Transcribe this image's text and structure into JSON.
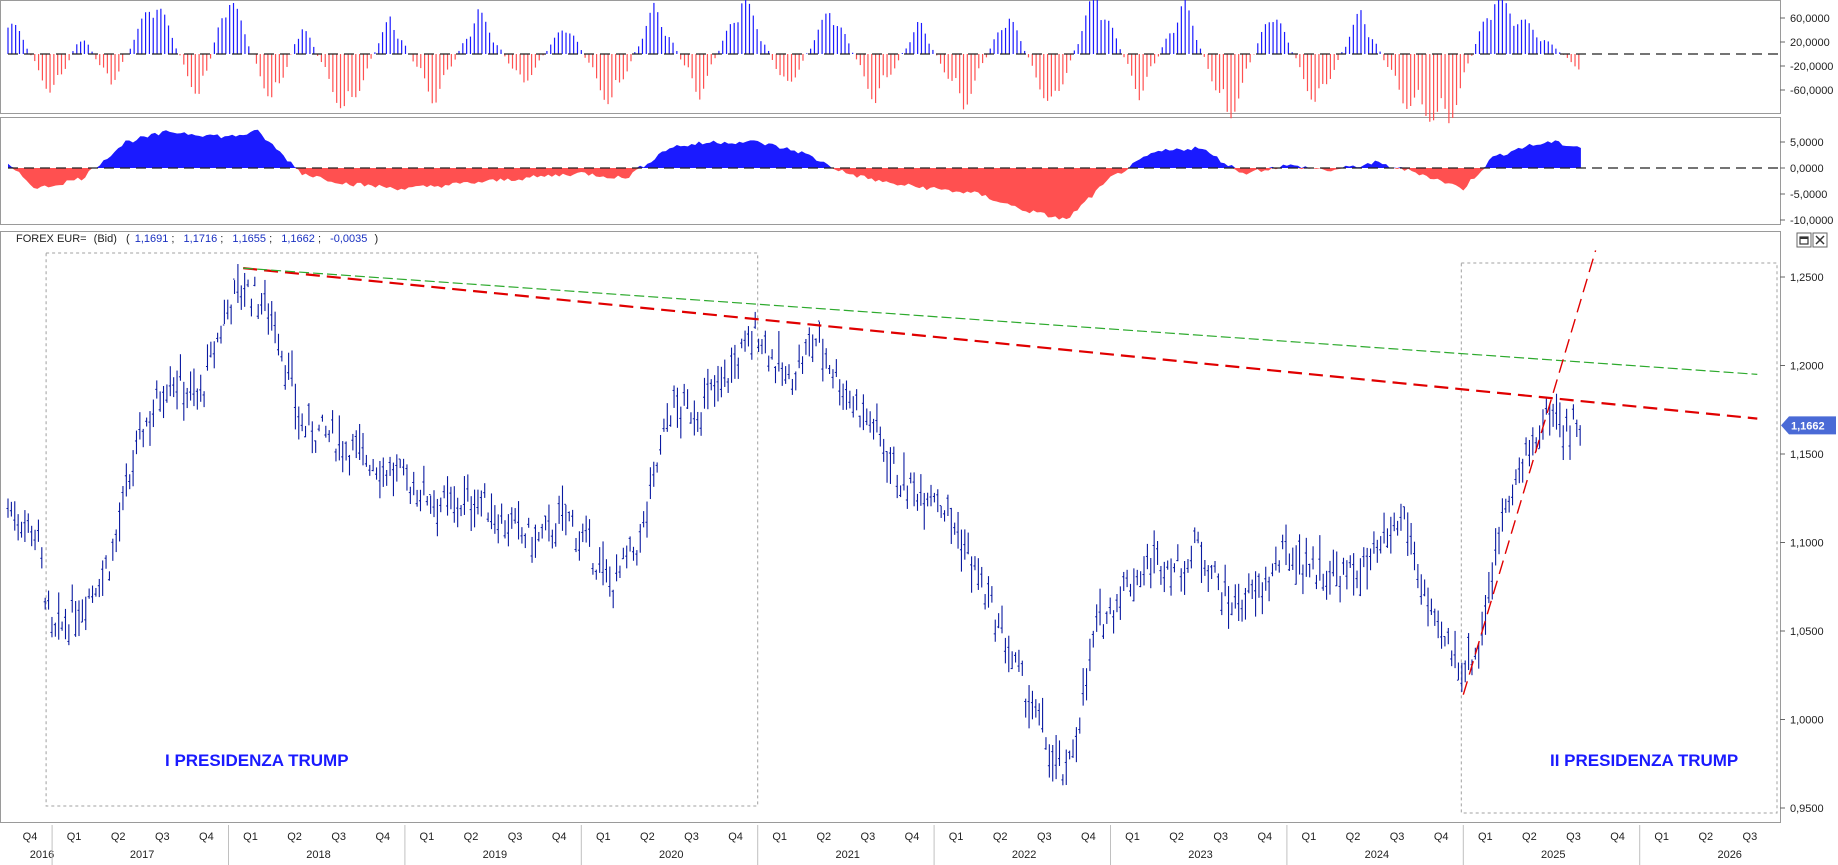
{
  "chart_data": {
    "type": "line",
    "instrument": {
      "name": "FOREX EUR=",
      "price_type": "(Bid)",
      "open": "1,1691",
      "high": "1,1716",
      "low": "1,1655",
      "close": "1,1662",
      "change": "-0,0035",
      "last_price_label": "1,1662"
    },
    "y_ticks": [
      "1,2500",
      "1,2000",
      "1,1500",
      "1,1000",
      "1,0500",
      "1,0000",
      "0,9500"
    ],
    "ylim": [
      0.94,
      1.27
    ],
    "oscillator1_ticks": [
      "60,0000",
      "20,0000",
      "-20,0000",
      "-60,0000"
    ],
    "oscillator2_ticks": [
      "5,0000",
      "0,0000",
      "-5,0000",
      "-10,0000"
    ],
    "quarter_ticks": [
      "Q4",
      "Q1",
      "Q2",
      "Q3",
      "Q4",
      "Q1",
      "Q2",
      "Q3",
      "Q4",
      "Q1",
      "Q2",
      "Q3",
      "Q4",
      "Q1",
      "Q2",
      "Q3",
      "Q4",
      "Q1",
      "Q2",
      "Q3",
      "Q4",
      "Q1",
      "Q2",
      "Q3",
      "Q4",
      "Q1",
      "Q2",
      "Q3",
      "Q4",
      "Q1",
      "Q2",
      "Q3",
      "Q4",
      "Q1",
      "Q2",
      "Q3",
      "Q4",
      "Q1",
      "Q2",
      "Q3"
    ],
    "year_ticks": [
      "2016",
      "2017",
      "2018",
      "2019",
      "2020",
      "2021",
      "2022",
      "2023",
      "2024",
      "2025",
      "2026"
    ],
    "x_range": [
      "2016-10",
      "2026-09"
    ],
    "series": [
      {
        "x": [
          "2016-10",
          "2016-12",
          "2017-01",
          "2017-03",
          "2017-05",
          "2017-07",
          "2017-09",
          "2017-11",
          "2018-01",
          "2018-02",
          "2018-04",
          "2018-06",
          "2018-08",
          "2018-10",
          "2018-12",
          "2019-02",
          "2019-04",
          "2019-06",
          "2019-08",
          "2019-10",
          "2019-12",
          "2020-02",
          "2020-03",
          "2020-05",
          "2020-07",
          "2020-09",
          "2020-11",
          "2021-01",
          "2021-03",
          "2021-05",
          "2021-07",
          "2021-09",
          "2021-11",
          "2022-01",
          "2022-03",
          "2022-05",
          "2022-07",
          "2022-09",
          "2022-10",
          "2022-12",
          "2023-02",
          "2023-04",
          "2023-06",
          "2023-07",
          "2023-09",
          "2023-11",
          "2024-01",
          "2024-03",
          "2024-05",
          "2024-07",
          "2024-09",
          "2024-11",
          "2025-01",
          "2025-02",
          "2025-04",
          "2025-05",
          "2025-06",
          "2025-07",
          "2025-08",
          "2025-09"
        ],
        "values": [
          1.12,
          1.105,
          1.045,
          1.065,
          1.09,
          1.16,
          1.195,
          1.18,
          1.235,
          1.245,
          1.23,
          1.165,
          1.16,
          1.15,
          1.14,
          1.13,
          1.12,
          1.125,
          1.11,
          1.1,
          1.115,
          1.09,
          1.075,
          1.1,
          1.175,
          1.175,
          1.195,
          1.22,
          1.19,
          1.215,
          1.185,
          1.165,
          1.13,
          1.13,
          1.1,
          1.06,
          1.02,
          0.98,
          0.965,
          1.05,
          1.075,
          1.09,
          1.085,
          1.1,
          1.065,
          1.07,
          1.095,
          1.085,
          1.08,
          1.09,
          1.115,
          1.05,
          1.03,
          1.04,
          1.13,
          1.14,
          1.16,
          1.175,
          1.165,
          1.166
        ]
      }
    ],
    "oscillator1": {
      "x": [
        "2016-10",
        "2017-01",
        "2017-03",
        "2017-05",
        "2017-08",
        "2017-11",
        "2018-01",
        "2018-04",
        "2018-06",
        "2018-09",
        "2018-12",
        "2019-03",
        "2019-06",
        "2019-09",
        "2019-12",
        "2020-03",
        "2020-06",
        "2020-09",
        "2020-12",
        "2021-03",
        "2021-06",
        "2021-09",
        "2021-12",
        "2022-03",
        "2022-06",
        "2022-09",
        "2022-12",
        "2023-03",
        "2023-06",
        "2023-09",
        "2023-12",
        "2024-03",
        "2024-06",
        "2024-09",
        "2024-12",
        "2025-03",
        "2025-06",
        "2025-09"
      ],
      "values": [
        40,
        -40,
        20,
        -30,
        55,
        -45,
        60,
        -50,
        30,
        -60,
        35,
        -45,
        40,
        -30,
        30,
        -50,
        45,
        -40,
        55,
        -35,
        45,
        -45,
        30,
        -50,
        40,
        -55,
        60,
        -40,
        50,
        -65,
        45,
        -50,
        40,
        -45,
        -65,
        55,
        20,
        -15
      ]
    },
    "oscillator2": {
      "x": [
        "2016-10",
        "2016-12",
        "2017-03",
        "2017-06",
        "2017-09",
        "2018-01",
        "2018-03",
        "2018-06",
        "2018-09",
        "2019-01",
        "2019-05",
        "2019-09",
        "2020-01",
        "2020-04",
        "2020-07",
        "2020-10",
        "2021-01",
        "2021-04",
        "2021-07",
        "2021-10",
        "2022-01",
        "2022-04",
        "2022-07",
        "2022-10",
        "2023-01",
        "2023-04",
        "2023-07",
        "2023-10",
        "2024-01",
        "2024-04",
        "2024-07",
        "2024-10",
        "2025-01",
        "2025-03",
        "2025-05",
        "2025-07",
        "2025-09"
      ],
      "values": [
        0.5,
        -4,
        -2,
        5,
        7,
        6,
        7,
        -1,
        -3,
        -4,
        -3,
        -2,
        -1,
        -2,
        4,
        5,
        5,
        3,
        -1,
        -3,
        -4,
        -5,
        -8,
        -10,
        -2,
        3,
        4,
        -1,
        0.5,
        -0.5,
        1,
        -1,
        -4,
        2,
        4,
        5,
        4
      ]
    },
    "trendlines": [
      {
        "type": "resistance",
        "color": "#e00000",
        "from": [
          "2018-02",
          1.255
        ],
        "to": [
          "2026-09",
          1.17
        ]
      },
      {
        "type": "resistance",
        "color": "#2eaa2e",
        "from": [
          "2018-02",
          1.255
        ],
        "to": [
          "2026-09",
          1.195
        ]
      },
      {
        "type": "support",
        "color": "#e00000",
        "from": [
          "2025-01",
          1.014
        ],
        "to": [
          "2025-10",
          1.265
        ]
      }
    ],
    "annotations": [
      {
        "text": "I PRESIDENZA TRUMP",
        "from": "2017-01",
        "to": "2021-01"
      },
      {
        "text": "II PRESIDENZA TRUMP",
        "from": "2025-01",
        "to": "2026-09"
      }
    ],
    "colors": {
      "price": "#0a1aa0",
      "positive": "#1a1aff",
      "negative": "#ff5050",
      "price_label_bg": "#4a6ad6"
    }
  }
}
